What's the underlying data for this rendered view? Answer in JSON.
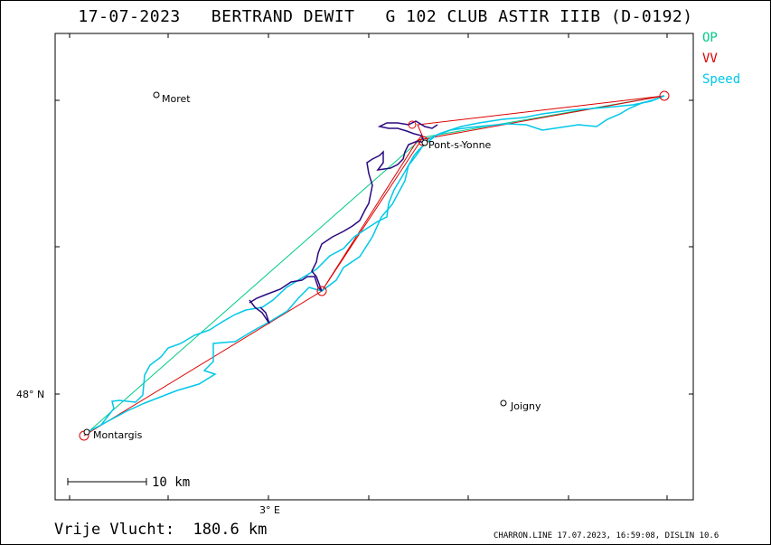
{
  "title": "17-07-2023   BERTRAND DEWIT   G 102 CLUB ASTIR IIIB (D-0192)",
  "legend": {
    "op": "OP",
    "vv": "VV",
    "speed": "Speed"
  },
  "colors": {
    "op": "#00cc88",
    "vv": "#dd0000",
    "speed": "#00c8e8",
    "track": "#2a0a80"
  },
  "towns": {
    "moret": "Moret",
    "pont": "Pont-s-Yonne",
    "joigny": "Joigny",
    "montargis": "Montargis"
  },
  "axes": {
    "lat_label": "48° N",
    "lon_label": "3° E"
  },
  "scale_label": "10  km",
  "distance_text": "Vrije Vlucht:  180.6 km",
  "footer": "CHARRON.LINE 17.07.2023, 16:59:08, DISLIN 10.6"
}
